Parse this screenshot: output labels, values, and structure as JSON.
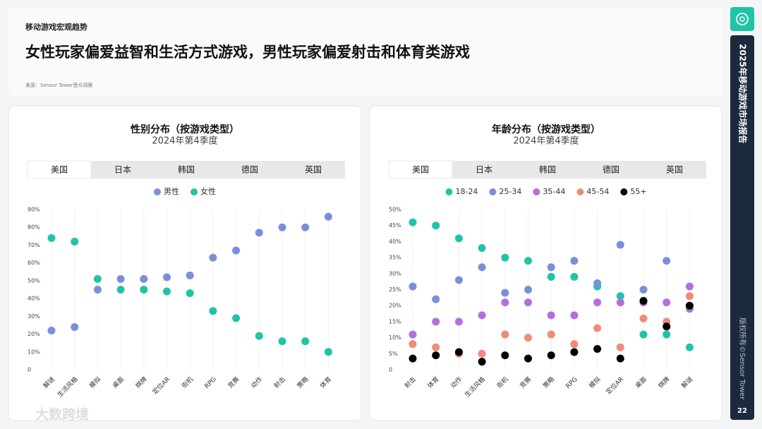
{
  "header": {
    "kicker": "移动游戏宏观趋势",
    "title": "女性玩家偏爱益智和生活方式游戏，男性玩家偏爱射击和体育类游戏",
    "source": "来源：Sensor Tower受众洞察"
  },
  "sidebar": {
    "report": "2025年移动游戏市场报告",
    "copyright": "版权所有©Sensor Tower",
    "page": 22
  },
  "watermark": "大数跨境",
  "chart_data": [
    {
      "type": "dot",
      "title": "性别分布（按游戏类型）",
      "subtitle": "2024年第4季度",
      "tabs": [
        "美国",
        "日本",
        "韩国",
        "德国",
        "英国"
      ],
      "active_tab": 0,
      "categories": [
        "解谜",
        "生活风格",
        "模拟",
        "桌面",
        "棋牌",
        "定位AR",
        "街机",
        "RPG",
        "竞赛",
        "动作",
        "射击",
        "策略",
        "体育"
      ],
      "series": [
        {
          "name": "男性",
          "color": "#7b8fd8",
          "values": [
            22,
            24,
            45,
            51,
            51,
            52,
            53,
            63,
            67,
            77,
            80,
            80,
            86
          ]
        },
        {
          "name": "女性",
          "color": "#1fc4a6",
          "values": [
            74,
            72,
            51,
            45,
            45,
            44,
            43,
            33,
            29,
            19,
            16,
            16,
            10
          ]
        }
      ],
      "ylim": [
        0,
        90
      ],
      "yticks": [
        0,
        {
          "value": 10,
          "label": "10%"
        },
        {
          "value": 20,
          "label": "20%"
        },
        {
          "value": 30,
          "label": "30%"
        },
        {
          "value": 40,
          "label": "40%"
        },
        {
          "value": 50,
          "label": "50%"
        },
        {
          "value": 60,
          "label": "60%"
        },
        {
          "value": 70,
          "label": "70%"
        },
        {
          "value": 80,
          "label": "80%"
        },
        {
          "value": 90,
          "label": "90%"
        }
      ],
      "grid": true
    },
    {
      "type": "dot",
      "title": "年龄分布（按游戏类型）",
      "subtitle": "2024年第4季度",
      "tabs": [
        "美国",
        "日本",
        "韩国",
        "德国",
        "英国"
      ],
      "active_tab": 0,
      "categories": [
        "射击",
        "体育",
        "动作",
        "生活风格",
        "街机",
        "竞赛",
        "策略",
        "RPG",
        "模拟",
        "定位AR",
        "桌面",
        "棋牌",
        "解谜"
      ],
      "series": [
        {
          "name": "18-24",
          "color": "#1fc4a6",
          "values": [
            46,
            45,
            41,
            38,
            35,
            34,
            29,
            29,
            26,
            23,
            11,
            11,
            7
          ]
        },
        {
          "name": "25-34",
          "color": "#7b8fd8",
          "values": [
            26,
            22,
            28,
            32,
            24,
            25,
            32,
            34,
            27,
            39,
            25,
            34,
            19
          ]
        },
        {
          "name": "35-44",
          "color": "#b66de0",
          "values": [
            11,
            15,
            15,
            17,
            21,
            21,
            17,
            17,
            21,
            21,
            21,
            21,
            26
          ]
        },
        {
          "name": "45-54",
          "color": "#ef8c78",
          "values": [
            8,
            7,
            5,
            5,
            11,
            10,
            11,
            8,
            13,
            7,
            16,
            15,
            23
          ]
        },
        {
          "name": "55+",
          "color": "#000000",
          "values": [
            3.5,
            4.5,
            5.5,
            2.5,
            4.5,
            3.5,
            4.5,
            5.5,
            6.5,
            3.5,
            21.5,
            13.5,
            20
          ]
        }
      ],
      "ylim": [
        0,
        50
      ],
      "yticks": [
        0,
        {
          "value": 5,
          "label": "5%"
        },
        {
          "value": 10,
          "label": "10%"
        },
        {
          "value": 15,
          "label": "15%"
        },
        {
          "value": 20,
          "label": "20%"
        },
        {
          "value": 25,
          "label": "25%"
        },
        {
          "value": 30,
          "label": "30%"
        },
        {
          "value": 35,
          "label": "35%"
        },
        {
          "value": 40,
          "label": "40%"
        },
        {
          "value": 45,
          "label": "45%"
        },
        {
          "value": 50,
          "label": "50%"
        }
      ],
      "grid": true
    }
  ]
}
